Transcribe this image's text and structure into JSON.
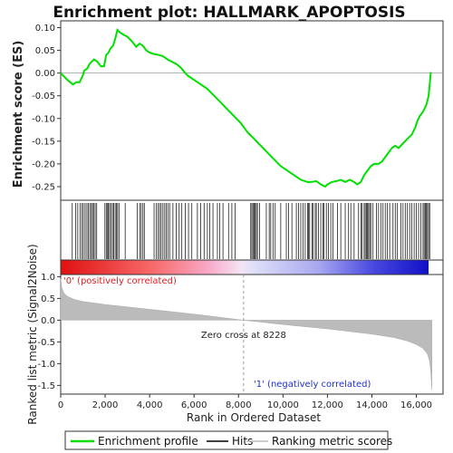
{
  "chart_data": {
    "type": "line",
    "title": "Enrichment plot: HALLMARK_APOPTOSIS",
    "top_panel": {
      "ylabel": "Enrichment score (ES)",
      "ylim": [
        -0.28,
        0.115
      ],
      "yticks": [
        "0.10",
        "0.05",
        "0.00",
        "-0.05",
        "-0.10",
        "-0.15",
        "-0.20",
        "-0.25"
      ],
      "ytick_values": [
        0.1,
        0.05,
        0.0,
        -0.05,
        -0.1,
        -0.15,
        -0.2,
        -0.25
      ],
      "series": [
        {
          "name": "Enrichment profile",
          "color": "#00e000",
          "x": [
            0,
            300,
            550,
            700,
            850,
            1000,
            1050,
            1200,
            1300,
            1400,
            1500,
            1650,
            1800,
            1950,
            2050,
            2150,
            2250,
            2350,
            2450,
            2550,
            2650,
            2800,
            3000,
            3200,
            3400,
            3550,
            3700,
            3850,
            4000,
            4200,
            4400,
            4600,
            4800,
            5000,
            5200,
            5400,
            5700,
            6000,
            6300,
            6600,
            6900,
            7200,
            7500,
            7800,
            8100,
            8400,
            8700,
            9000,
            9300,
            9600,
            9900,
            10200,
            10500,
            10800,
            11100,
            11300,
            11500,
            11700,
            11900,
            12000,
            12200,
            12400,
            12600,
            12800,
            13000,
            13200,
            13350,
            13500,
            13650,
            13800,
            13950,
            14100,
            14300,
            14450,
            14600,
            14750,
            14900,
            15050,
            15200,
            15400,
            15600,
            15800,
            15950,
            16050,
            16150,
            16300,
            16450,
            16550,
            16600,
            16650
          ],
          "y": [
            0.0,
            -0.015,
            -0.025,
            -0.02,
            -0.02,
            -0.005,
            0.005,
            0.01,
            0.02,
            0.025,
            0.03,
            0.025,
            0.015,
            0.015,
            0.04,
            0.045,
            0.055,
            0.06,
            0.075,
            0.095,
            0.09,
            0.085,
            0.08,
            0.07,
            0.058,
            0.065,
            0.06,
            0.05,
            0.045,
            0.042,
            0.04,
            0.037,
            0.03,
            0.025,
            0.02,
            0.012,
            -0.005,
            -0.015,
            -0.025,
            -0.035,
            -0.05,
            -0.065,
            -0.08,
            -0.095,
            -0.11,
            -0.13,
            -0.145,
            -0.16,
            -0.175,
            -0.19,
            -0.205,
            -0.215,
            -0.225,
            -0.235,
            -0.24,
            -0.24,
            -0.238,
            -0.245,
            -0.25,
            -0.245,
            -0.24,
            -0.238,
            -0.235,
            -0.24,
            -0.235,
            -0.24,
            -0.245,
            -0.24,
            -0.225,
            -0.215,
            -0.205,
            -0.2,
            -0.2,
            -0.195,
            -0.185,
            -0.175,
            -0.165,
            -0.16,
            -0.165,
            -0.155,
            -0.145,
            -0.135,
            -0.12,
            -0.105,
            -0.095,
            -0.085,
            -0.07,
            -0.05,
            -0.025,
            0.002
          ]
        }
      ]
    },
    "hits_panel": {
      "hits": [
        520,
        680,
        770,
        870,
        950,
        1020,
        1100,
        1180,
        1250,
        1310,
        1380,
        1430,
        1480,
        1550,
        1620,
        1990,
        2050,
        2110,
        2150,
        2200,
        2270,
        2330,
        2390,
        2450,
        2500,
        2560,
        2620,
        2900,
        3450,
        3550,
        3620,
        3700,
        3760,
        4200,
        4300,
        4380,
        4450,
        4520,
        4600,
        4680,
        4750,
        4820,
        4900,
        5050,
        5200,
        5330,
        5450,
        5600,
        5750,
        5900,
        6150,
        6300,
        6450,
        6600,
        6700,
        6850,
        7050,
        7150,
        7300,
        7550,
        7700,
        7850,
        8550,
        8600,
        8650,
        8700,
        8750,
        8800,
        8850,
        8950,
        9250,
        9380,
        9450,
        9550,
        9650,
        9900,
        10150,
        10250,
        10400,
        10600,
        10700,
        10800,
        10900,
        11000,
        11100,
        11150,
        11200,
        11300,
        11350,
        11450,
        11500,
        11600,
        11700,
        11800,
        11850,
        11950,
        12050,
        12150,
        12250,
        12450,
        12600,
        12800,
        12950,
        13050,
        13200,
        13400,
        13500,
        13550,
        13650,
        13700,
        13750,
        13800,
        13850,
        13900,
        13950,
        14050,
        14200,
        14300,
        14400,
        14500,
        14600,
        14700,
        14800,
        14950,
        15050,
        15150,
        15300,
        15400,
        15500,
        15600,
        15700,
        15800,
        15900,
        16000,
        16100,
        16200,
        16300,
        16350,
        16400,
        16450,
        16500,
        16550,
        16600
      ]
    },
    "bottom_panel": {
      "ylabel": "Ranked list metric (Signal2Noise)",
      "xlabel": "Rank in Ordered Dataset",
      "ylim": [
        -1.7,
        1.05
      ],
      "yticks": [
        "1.0",
        "0.5",
        "0.0",
        "-0.5",
        "-1.0",
        "-1.5"
      ],
      "ytick_values": [
        1.0,
        0.5,
        0.0,
        -0.5,
        -1.0,
        -1.5
      ],
      "xticks": [
        "0",
        "2,000",
        "4,000",
        "6,000",
        "8,000",
        "10,000",
        "12,000",
        "14,000",
        "16,000"
      ],
      "xtick_values": [
        0,
        2000,
        4000,
        6000,
        8000,
        10000,
        12000,
        14000,
        16000
      ],
      "xlim": [
        0,
        17200
      ],
      "n_genes": 16700,
      "metric_profile": {
        "x": [
          0,
          50,
          150,
          300,
          600,
          1000,
          2000,
          4000,
          6000,
          8228,
          10000,
          12000,
          14000,
          15000,
          15600,
          16000,
          16300,
          16500,
          16600,
          16650,
          16700
        ],
        "y": [
          0.95,
          0.75,
          0.62,
          0.55,
          0.48,
          0.43,
          0.36,
          0.25,
          0.14,
          0.0,
          -0.1,
          -0.2,
          -0.32,
          -0.4,
          -0.48,
          -0.56,
          -0.65,
          -0.78,
          -0.95,
          -1.2,
          -1.6
        ]
      },
      "zero_cross": 8228,
      "zero_cross_label": "Zero cross at 8228",
      "pos_label": "'0' (positively correlated)",
      "neg_label": "'1' (negatively correlated)"
    },
    "legend": [
      {
        "label": "Enrichment profile",
        "color": "#00e000"
      },
      {
        "label": "Hits",
        "color": "#000000"
      },
      {
        "label": "Ranking metric scores",
        "color": "#bbbbbb"
      }
    ]
  }
}
